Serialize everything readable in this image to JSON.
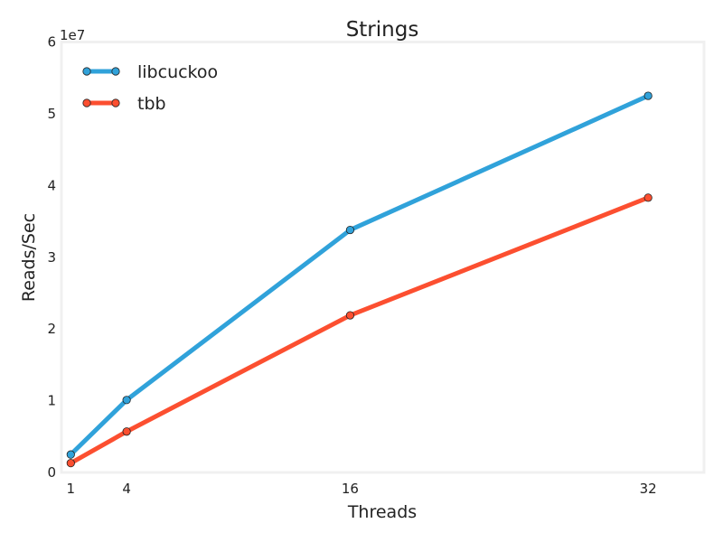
{
  "chart_data": {
    "type": "line",
    "title": "Strings",
    "xlabel": "Threads",
    "ylabel": "Reads/Sec",
    "y_offset_label": "1e7",
    "x": [
      1,
      4,
      16,
      32
    ],
    "x_tick_labels": [
      "1",
      "4",
      "16",
      "32"
    ],
    "xlim": [
      0.5,
      35
    ],
    "ylim": [
      0,
      60000000
    ],
    "y_ticks": [
      0,
      10000000,
      20000000,
      30000000,
      40000000,
      50000000,
      60000000
    ],
    "y_tick_labels": [
      "0",
      "1",
      "2",
      "3",
      "4",
      "5",
      "6"
    ],
    "grid": false,
    "legend_position": "top-left",
    "series": [
      {
        "name": "libcuckoo",
        "color": "#30a2da",
        "values": [
          2500000,
          10100000,
          33800000,
          52500000
        ]
      },
      {
        "name": "tbb",
        "color": "#fc4f30",
        "values": [
          1300000,
          5700000,
          21900000,
          38300000
        ]
      }
    ]
  }
}
